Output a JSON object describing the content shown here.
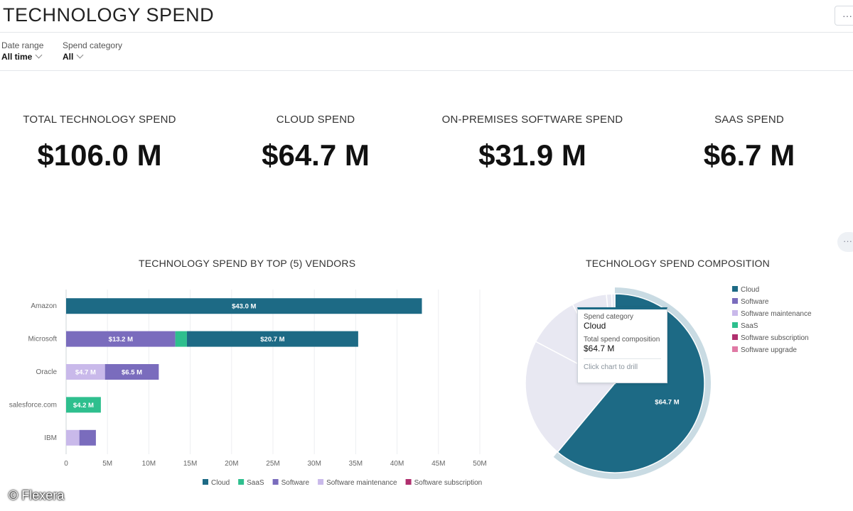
{
  "header": {
    "title": "TECHNOLOGY SPEND",
    "more_label": "···"
  },
  "filters": [
    {
      "label": "Date range",
      "value": "All time"
    },
    {
      "label": "Spend category",
      "value": "All"
    }
  ],
  "kpis": [
    {
      "label": "TOTAL TECHNOLOGY SPEND",
      "value": "$106.0 M"
    },
    {
      "label": "CLOUD SPEND",
      "value": "$64.7 M"
    },
    {
      "label": "ON-PREMISES SOFTWARE SPEND",
      "value": "$31.9 M"
    },
    {
      "label": "SAAS SPEND",
      "value": "$6.7 M"
    }
  ],
  "side_menu_label": "···",
  "colors": {
    "cloud": "#1d6a85",
    "saas": "#2ebf8e",
    "software": "#7a6cbd",
    "software_maintenance": "#c9b9ea",
    "software_subscription": "#b0306e",
    "software_upgrade": "#e07aa5"
  },
  "chart_data": [
    {
      "type": "bar",
      "orientation": "horizontal",
      "stacked": true,
      "title": "TECHNOLOGY SPEND BY TOP (5) VENDORS",
      "categories": [
        "Amazon",
        "Microsoft",
        "Oracle",
        "salesforce.com",
        "IBM"
      ],
      "series": [
        {
          "name": "Software maintenance",
          "color_key": "software_maintenance",
          "values": [
            0,
            0,
            4.7,
            0,
            1.6
          ],
          "labels": [
            "",
            "",
            "$4.7 M",
            "",
            ""
          ]
        },
        {
          "name": "Software",
          "color_key": "software",
          "values": [
            0,
            13.2,
            6.5,
            0,
            2.0
          ],
          "labels": [
            "",
            "$13.2 M",
            "$6.5 M",
            "",
            ""
          ]
        },
        {
          "name": "SaaS",
          "color_key": "saas",
          "values": [
            0,
            1.4,
            0,
            4.2,
            0
          ],
          "labels": [
            "",
            "",
            "",
            "$4.2 M",
            ""
          ]
        },
        {
          "name": "Cloud",
          "color_key": "cloud",
          "values": [
            43.0,
            20.7,
            0,
            0,
            0
          ],
          "labels": [
            "$43.0 M",
            "$20.7 M",
            "",
            "",
            ""
          ]
        }
      ],
      "xlim": [
        0,
        50
      ],
      "xticks": [
        0,
        5,
        10,
        15,
        20,
        25,
        30,
        35,
        40,
        45,
        50
      ],
      "xtick_labels": [
        "0",
        "5M",
        "10M",
        "15M",
        "20M",
        "25M",
        "30M",
        "35M",
        "40M",
        "45M",
        "50M"
      ],
      "grid": true,
      "legend": [
        {
          "name": "Cloud",
          "color_key": "cloud"
        },
        {
          "name": "SaaS",
          "color_key": "saas"
        },
        {
          "name": "Software",
          "color_key": "software"
        },
        {
          "name": "Software maintenance",
          "color_key": "software_maintenance"
        },
        {
          "name": "Software subscription",
          "color_key": "software_subscription"
        }
      ],
      "legend_position": "bottom"
    },
    {
      "type": "pie",
      "title": "TECHNOLOGY SPEND COMPOSITION",
      "slices": [
        {
          "name": "Cloud",
          "value": 64.7,
          "color_key": "cloud",
          "label": "$64.7 M",
          "highlighted": true
        },
        {
          "name": "Software",
          "value": 23.0,
          "color_key": "software",
          "label": ""
        },
        {
          "name": "Software maintenance",
          "value": 10.0,
          "color_key": "software_maintenance",
          "label": ""
        },
        {
          "name": "SaaS",
          "value": 6.7,
          "color_key": "saas",
          "label": ""
        },
        {
          "name": "Software subscription",
          "value": 1.0,
          "color_key": "software_subscription",
          "label": ""
        },
        {
          "name": "Software upgrade",
          "value": 0.6,
          "color_key": "software_upgrade",
          "label": ""
        }
      ],
      "dimmed_color": "#e8e8f2",
      "legend": [
        "Cloud",
        "Software",
        "Software maintenance",
        "SaaS",
        "Software subscription",
        "Software upgrade"
      ],
      "legend_position": "right",
      "tooltip": {
        "category_label": "Spend category",
        "category_value": "Cloud",
        "metric_label": "Total spend composition",
        "metric_value": "$64.7 M",
        "hint": "Click chart to drill"
      }
    }
  ],
  "watermark": "© Flexera"
}
